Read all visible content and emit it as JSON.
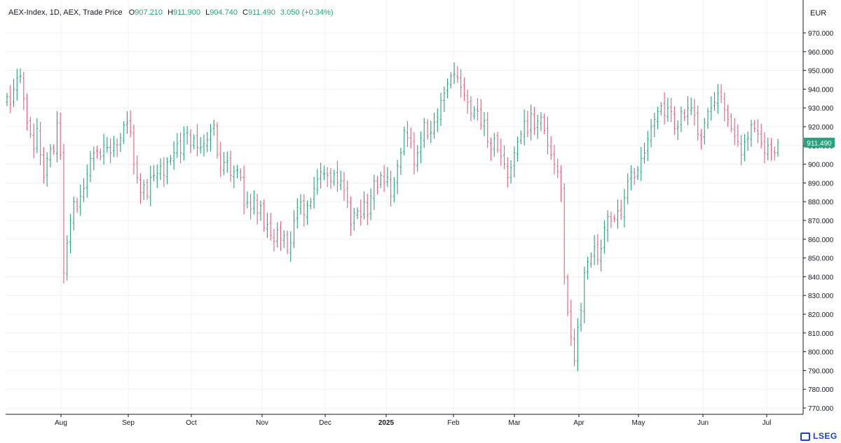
{
  "legend": {
    "title": "AEX-Index, 1D, AEX, Trade Price",
    "o_label": "O",
    "o_value": "907.210",
    "h_label": "H",
    "h_value": "911.900",
    "l_label": "L",
    "l_value": "904.740",
    "c_label": "C",
    "c_value": "911.490",
    "change": "3.050 (+0.34%)"
  },
  "currency": "EUR",
  "brand": "LSEG",
  "colors": {
    "up": "#26a37a",
    "down": "#e0607e",
    "grid": "#eef0f3",
    "axis": "#131722",
    "price_badge": "#26a37a"
  },
  "chart_data": {
    "type": "ohlc",
    "title": "AEX-Index, 1D, AEX, Trade Price",
    "ylim": [
      765,
      978
    ],
    "y_ticks": [
      "970.000",
      "960.000",
      "950.000",
      "940.000",
      "930.000",
      "920.000",
      "910.000",
      "900.000",
      "890.000",
      "880.000",
      "870.000",
      "860.000",
      "850.000",
      "840.000",
      "830.000",
      "820.000",
      "810.000",
      "800.000",
      "790.000",
      "780.000",
      "770.000"
    ],
    "x_ticks": [
      "Aug",
      "Sep",
      "Oct",
      "Nov",
      "Dec",
      "2025",
      "Feb",
      "Mar",
      "Apr",
      "May",
      "Jun",
      "Jul"
    ],
    "last_price": "911.490",
    "grid": true,
    "close": [
      936.0,
      932.0,
      940.0,
      946.0,
      947.0,
      935.0,
      922.0,
      916.0,
      908.0,
      919.0,
      905.0,
      893.0,
      903.0,
      908.0,
      907.0,
      922.0,
      905.0,
      842.0,
      858.0,
      870.0,
      880.0,
      876.0,
      883.0,
      887.0,
      895.0,
      903.0,
      906.0,
      907.0,
      904.0,
      910.0,
      909.0,
      906.0,
      911.0,
      910.0,
      914.0,
      921.0,
      922.0,
      917.0,
      900.0,
      893.0,
      885.0,
      889.0,
      883.0,
      893.0,
      894.0,
      895.0,
      899.0,
      894.0,
      901.0,
      903.0,
      906.0,
      911.0,
      906.0,
      916.0,
      917.0,
      910.0,
      914.0,
      909.0,
      909.0,
      911.0,
      913.0,
      918.0,
      921.0,
      905.0,
      898.0,
      901.0,
      902.0,
      894.0,
      896.0,
      897.0,
      893.0,
      878.0,
      880.0,
      876.0,
      882.0,
      874.0,
      878.0,
      866.0,
      868.0,
      862.0,
      859.0,
      865.0,
      860.0,
      862.0,
      854.0,
      858.0,
      870.0,
      877.0,
      880.0,
      873.0,
      878.0,
      880.0,
      887.0,
      892.0,
      896.0,
      895.0,
      894.0,
      891.0,
      895.0,
      890.0,
      891.0,
      886.0,
      880.0,
      868.0,
      874.0,
      875.0,
      872.0,
      880.0,
      873.0,
      883.0,
      891.0,
      888.0,
      894.0,
      890.0,
      893.0,
      883.0,
      889.0,
      899.0,
      906.0,
      918.0,
      914.0,
      911.0,
      900.0,
      906.0,
      914.0,
      922.0,
      915.0,
      917.0,
      922.0,
      925.0,
      934.0,
      938.0,
      943.0,
      947.0,
      948.0,
      946.0,
      941.0,
      937.0,
      933.0,
      927.0,
      929.0,
      928.0,
      921.0,
      923.0,
      912.0,
      908.0,
      914.0,
      908.0,
      904.0,
      900.0,
      893.0,
      898.0,
      906.0,
      912.0,
      916.0,
      923.0,
      917.0,
      927.0,
      919.0,
      923.0,
      925.0,
      918.0,
      910.0,
      905.0,
      900.0,
      896.0,
      886.0,
      840.0,
      821.0,
      808.0,
      795.0,
      813.0,
      822.0,
      842.0,
      848.0,
      851.0,
      856.0,
      849.0,
      855.0,
      866.0,
      872.0,
      870.0,
      871.0,
      875.0,
      873.0,
      882.0,
      891.0,
      896.0,
      893.0,
      897.0,
      903.0,
      906.0,
      913.0,
      920.0,
      924.0,
      928.0,
      931.0,
      926.0,
      930.0,
      928.0,
      919.0,
      920.0,
      928.0,
      925.0,
      930.0,
      930.0,
      926.0,
      916.0,
      914.0,
      922.0,
      928.0,
      930.0,
      933.0,
      938.0,
      936.0,
      929.0,
      924.0,
      919.0,
      915.0,
      912.0,
      905.0,
      912.0,
      914.0,
      921.0,
      919.0,
      916.0,
      911.0,
      906.0,
      910.0,
      908.0,
      906.0,
      911.5
    ]
  }
}
